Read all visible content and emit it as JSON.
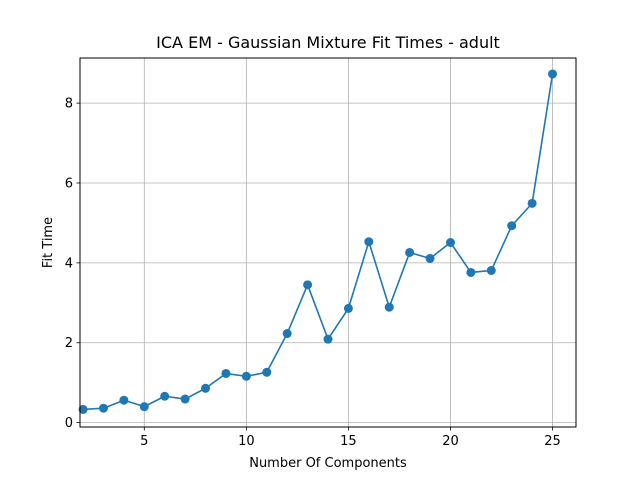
{
  "chart_data": {
    "type": "line",
    "title": "ICA EM - Gaussian Mixture Fit Times - adult",
    "xlabel": "Number Of Components",
    "ylabel": "Fit Time",
    "xlim": [
      1.85,
      26.15
    ],
    "ylim": [
      -0.11,
      9.13
    ],
    "xticks": [
      5,
      10,
      15,
      20,
      25
    ],
    "yticks": [
      0,
      2,
      4,
      6,
      8
    ],
    "grid": true,
    "series": [
      {
        "color": "#1f77b4",
        "marker": "circle",
        "x": [
          2,
          3,
          4,
          5,
          6,
          7,
          8,
          9,
          10,
          11,
          12,
          13,
          14,
          15,
          16,
          17,
          18,
          19,
          20,
          21,
          22,
          23,
          24,
          25
        ],
        "y": [
          0.33,
          0.36,
          0.56,
          0.4,
          0.66,
          0.59,
          0.86,
          1.23,
          1.16,
          1.26,
          2.23,
          3.45,
          2.09,
          2.86,
          4.53,
          2.89,
          4.26,
          4.11,
          4.51,
          3.76,
          3.81,
          4.93,
          5.49,
          8.73
        ]
      }
    ]
  }
}
